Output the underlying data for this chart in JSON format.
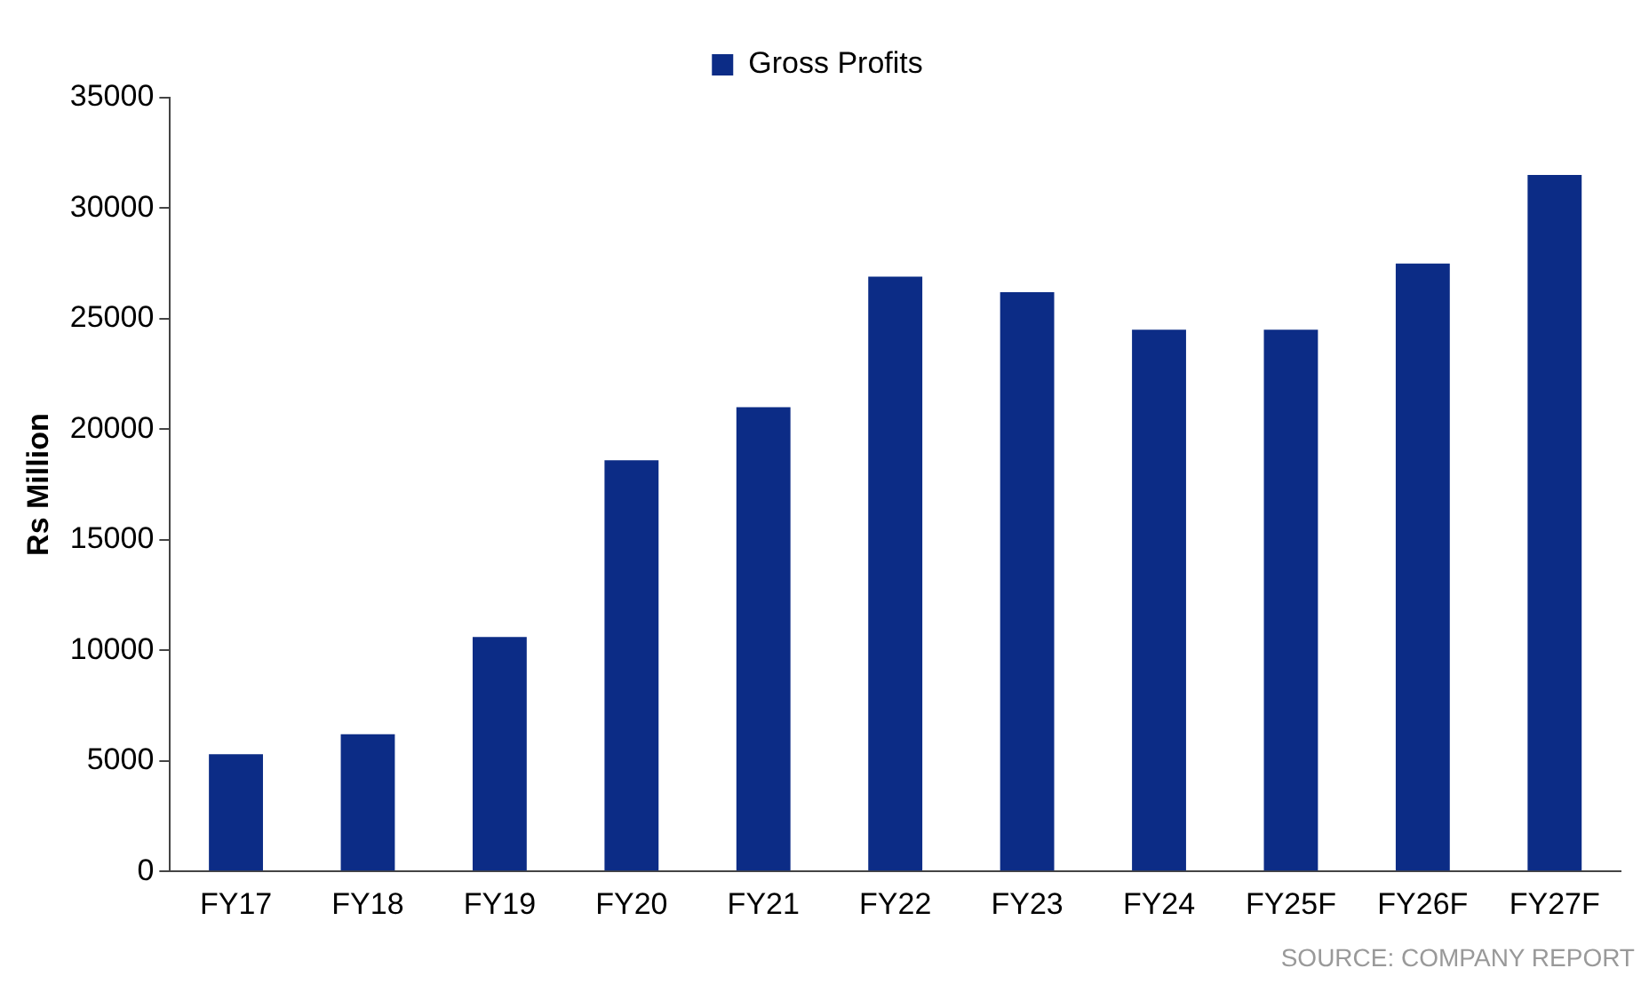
{
  "chart_data": {
    "type": "bar",
    "ylabel": "Rs Million",
    "categories": [
      "FY17",
      "FY18",
      "FY19",
      "FY20",
      "FY21",
      "FY22",
      "FY23",
      "FY24",
      "FY25F",
      "FY26F",
      "FY27F"
    ],
    "series": [
      {
        "name": "Gross Profits",
        "color": "#0c2c86",
        "values": [
          5300,
          6200,
          10600,
          18600,
          21000,
          26900,
          26200,
          24500,
          24500,
          27500,
          31500
        ]
      }
    ],
    "ylim": [
      0,
      35000
    ],
    "yticks": [
      0,
      5000,
      10000,
      15000,
      20000,
      25000,
      30000,
      35000
    ],
    "grid": false,
    "legend": "top",
    "annotations": [
      "SOURCE: COMPANY REPORT"
    ]
  }
}
